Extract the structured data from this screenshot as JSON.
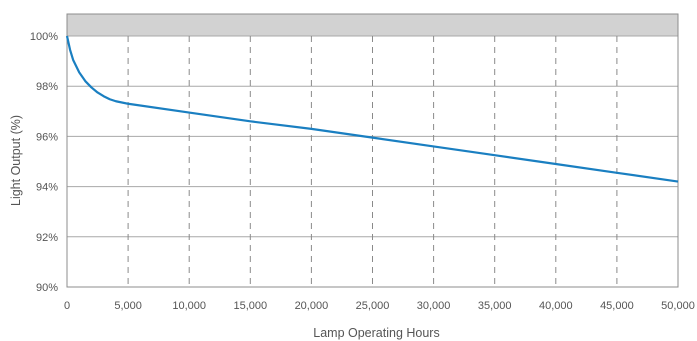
{
  "chart_data": {
    "type": "line",
    "title": "",
    "xlabel": "Lamp Operating Hours",
    "ylabel": "Light Output (%)",
    "xlim": [
      0,
      50000
    ],
    "ylim": [
      90,
      100
    ],
    "x_ticks": [
      0,
      5000,
      10000,
      15000,
      20000,
      25000,
      30000,
      35000,
      40000,
      45000,
      50000
    ],
    "x_tick_labels": [
      "0",
      "5,000",
      "10,000",
      "15,000",
      "20,000",
      "25,000",
      "30,000",
      "35,000",
      "40,000",
      "45,000",
      "50,000"
    ],
    "y_ticks": [
      90,
      92,
      94,
      96,
      98,
      100
    ],
    "y_tick_labels": [
      "90%",
      "92%",
      "94%",
      "96%",
      "98%",
      "100%"
    ],
    "grid": {
      "vertical": "dashed",
      "horizontal": "solid"
    },
    "shaded_band_above": 100,
    "series": [
      {
        "color": "#1a7fc1",
        "x": [
          0,
          250,
          500,
          1000,
          1500,
          2000,
          2500,
          3000,
          3500,
          4000,
          5000,
          10000,
          15000,
          20000,
          25000,
          30000,
          35000,
          40000,
          45000,
          50000
        ],
        "y": [
          100,
          99.45,
          99.05,
          98.55,
          98.2,
          97.95,
          97.75,
          97.6,
          97.48,
          97.4,
          97.3,
          96.95,
          96.6,
          96.3,
          95.95,
          95.6,
          95.25,
          94.9,
          94.55,
          94.2
        ]
      }
    ]
  }
}
